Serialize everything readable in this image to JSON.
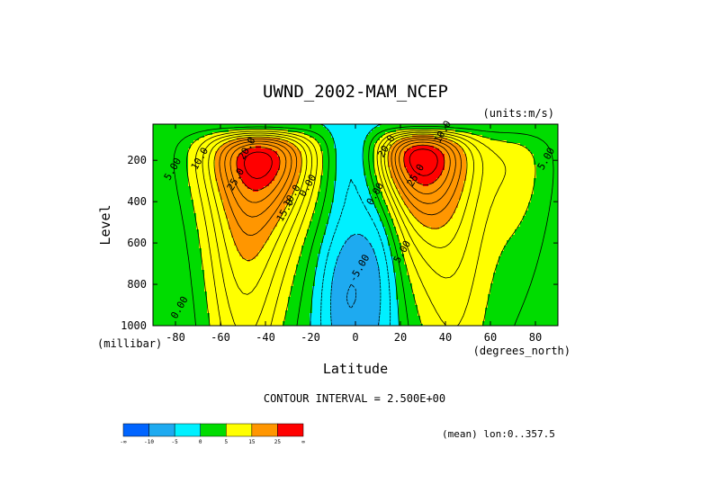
{
  "chart_data": {
    "type": "contour",
    "title": "UWND_2002-MAM_NCEP",
    "units_label": "(units:m/s)",
    "xlabel": "Latitude",
    "x_units": "(degrees_north)",
    "ylabel": "Level",
    "y_units": "(millibar)",
    "xlim": [
      -90,
      90
    ],
    "ylim": [
      1000,
      25
    ],
    "y_inverted": true,
    "x_ticks": [
      -80,
      -60,
      -40,
      -20,
      0,
      20,
      40,
      60,
      80
    ],
    "x_tick_labels": [
      "-80",
      "-60",
      "-40",
      "-20",
      "0",
      "20",
      "40",
      "60",
      "80"
    ],
    "y_ticks": [
      200,
      400,
      600,
      800,
      1000
    ],
    "y_tick_labels": [
      "200",
      "400",
      "600",
      "800",
      "1000"
    ],
    "contour_interval_label": "CONTOUR INTERVAL = 2.500E+00",
    "mean_label": "(mean) lon:0..357.5",
    "colorbar": {
      "colors": [
        "#0064ff",
        "#1eaaf0",
        "#00f0ff",
        "#00dc00",
        "#ffff00",
        "#ff9600",
        "#ff0000"
      ],
      "labels": [
        "-∞",
        "-10",
        "-5",
        "0",
        "5",
        "15",
        "25",
        "∞"
      ]
    },
    "contour_labels": [
      {
        "text": "20.0",
        "lat": -47,
        "lev": 150
      },
      {
        "text": "10.0",
        "lat": -68,
        "lev": 200
      },
      {
        "text": "5.00",
        "lat": -80,
        "lev": 250
      },
      {
        "text": "25.0",
        "lat": -52,
        "lev": 300
      },
      {
        "text": "15.0",
        "lat": -30,
        "lev": 450
      },
      {
        "text": "10.0",
        "lat": -27,
        "lev": 380
      },
      {
        "text": "0.00",
        "lat": -20,
        "lev": 330
      },
      {
        "text": "0.00",
        "lat": -77,
        "lev": 920
      },
      {
        "text": "0.00",
        "lat": 10,
        "lev": 370
      },
      {
        "text": "5.00",
        "lat": 22,
        "lev": 650
      },
      {
        "text": "-5.00",
        "lat": 3,
        "lev": 730
      },
      {
        "text": "20.0",
        "lat": 15,
        "lev": 140
      },
      {
        "text": "10.0",
        "lat": 40,
        "lev": 70
      },
      {
        "text": "25.0",
        "lat": 28,
        "lev": 280
      },
      {
        "text": "5.00",
        "lat": 86,
        "lev": 200
      }
    ],
    "jets": [
      {
        "lat": -43,
        "lev": 205,
        "max_speed": 29
      },
      {
        "lat": 29,
        "lev": 195,
        "max_speed": 30
      }
    ]
  }
}
